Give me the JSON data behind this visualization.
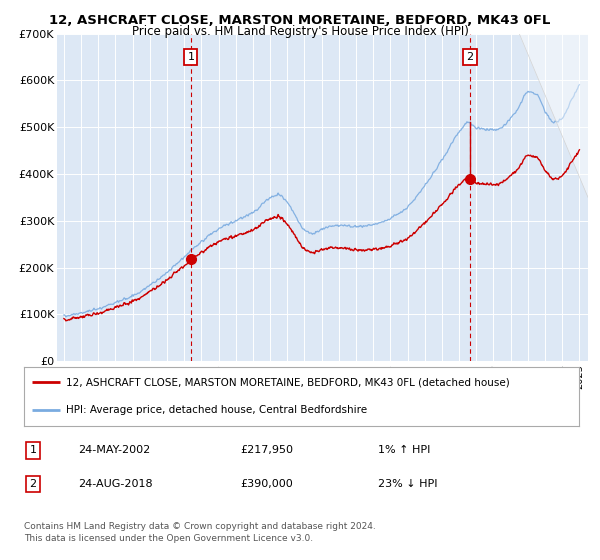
{
  "title": "12, ASHCRAFT CLOSE, MARSTON MORETAINE, BEDFORD, MK43 0FL",
  "subtitle": "Price paid vs. HM Land Registry's House Price Index (HPI)",
  "legend_line1": "12, ASHCRAFT CLOSE, MARSTON MORETAINE, BEDFORD, MK43 0FL (detached house)",
  "legend_line2": "HPI: Average price, detached house, Central Bedfordshire",
  "annotation1_date": "24-MAY-2002",
  "annotation1_price": "£217,950",
  "annotation1_hpi": "1% ↑ HPI",
  "annotation2_date": "24-AUG-2018",
  "annotation2_price": "£390,000",
  "annotation2_hpi": "23% ↓ HPI",
  "footer_line1": "Contains HM Land Registry data © Crown copyright and database right 2024.",
  "footer_line2": "This data is licensed under the Open Government Licence v3.0.",
  "ytick_labels": [
    "£0",
    "£100K",
    "£200K",
    "£300K",
    "£400K",
    "£500K",
    "£600K",
    "£700K"
  ],
  "bg_color": "#dde8f5",
  "red_line_color": "#cc0000",
  "blue_line_color": "#7aabe0",
  "dashed_line_color": "#cc0000",
  "grid_color": "#ffffff",
  "sale1_year_f": 2002.39,
  "sale1_price": 217950,
  "sale2_year_f": 2018.64,
  "sale2_price": 390000
}
